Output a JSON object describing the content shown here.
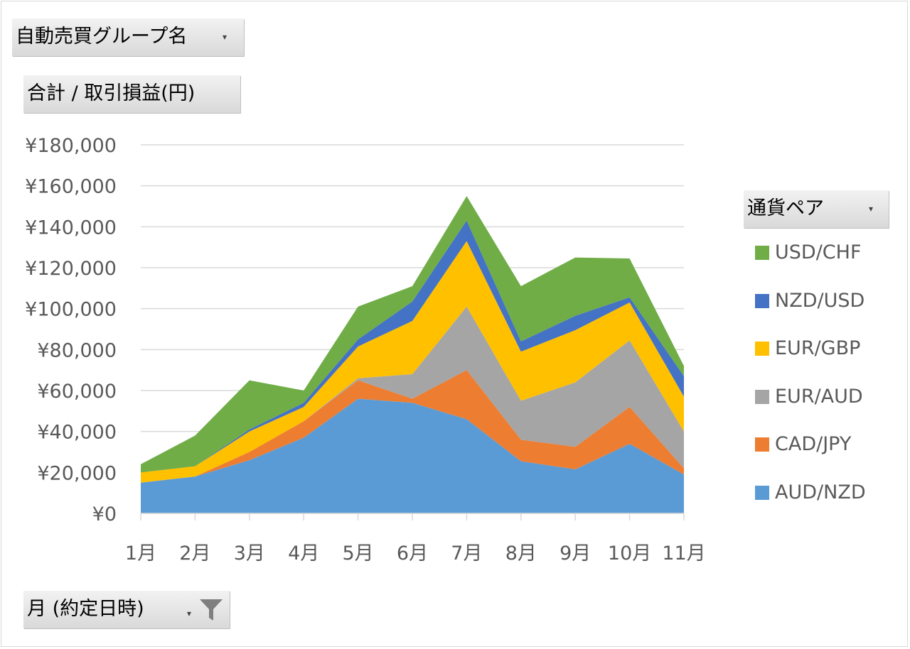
{
  "field_buttons": {
    "report_filter": "自動売買グループ名",
    "values_field": "合計 / 取引損益(円)",
    "legend_field": "通貨ペア",
    "axis_field": "月 (約定日時)"
  },
  "icons": {
    "dropdown": "dropdown-arrow-icon",
    "filter": "filter-funnel-icon"
  },
  "chart_data": {
    "type": "area",
    "stacked": true,
    "categories": [
      "1月",
      "2月",
      "3月",
      "4月",
      "5月",
      "6月",
      "7月",
      "8月",
      "9月",
      "10月",
      "11月"
    ],
    "ylim": [
      0,
      180000
    ],
    "yticks": [
      0,
      20000,
      40000,
      60000,
      80000,
      100000,
      120000,
      140000,
      160000,
      180000
    ],
    "ytick_labels": [
      "¥0",
      "¥20,000",
      "¥40,000",
      "¥60,000",
      "¥80,000",
      "¥100,000",
      "¥120,000",
      "¥140,000",
      "¥160,000",
      "¥180,000"
    ],
    "grid": true,
    "legend_position": "right",
    "series": [
      {
        "name": "AUD/NZD",
        "color": "#5b9bd5",
        "values": [
          15000,
          18000,
          26000,
          37000,
          56000,
          54000,
          46000,
          25500,
          21500,
          34000,
          19000
        ]
      },
      {
        "name": "CAD/JPY",
        "color": "#ed7d31",
        "values": [
          0,
          0,
          4000,
          8000,
          9000,
          2000,
          24000,
          10500,
          11000,
          18000,
          3000
        ]
      },
      {
        "name": "EUR/AUD",
        "color": "#a5a5a5",
        "values": [
          0,
          0,
          0,
          0,
          1000,
          12000,
          31000,
          19000,
          31500,
          32500,
          18000
        ]
      },
      {
        "name": "EUR/GBP",
        "color": "#ffc000",
        "values": [
          5000,
          5000,
          10000,
          7000,
          15500,
          26000,
          32000,
          24000,
          25500,
          18500,
          17000
        ]
      },
      {
        "name": "NZD/USD",
        "color": "#4472c4",
        "values": [
          0,
          0,
          1000,
          2000,
          3500,
          9500,
          10000,
          5000,
          7000,
          2500,
          10000
        ]
      },
      {
        "name": "USD/CHF",
        "color": "#70ad47",
        "values": [
          4000,
          15000,
          24000,
          6000,
          16000,
          7500,
          12000,
          27000,
          28500,
          19000,
          5000
        ]
      }
    ]
  }
}
